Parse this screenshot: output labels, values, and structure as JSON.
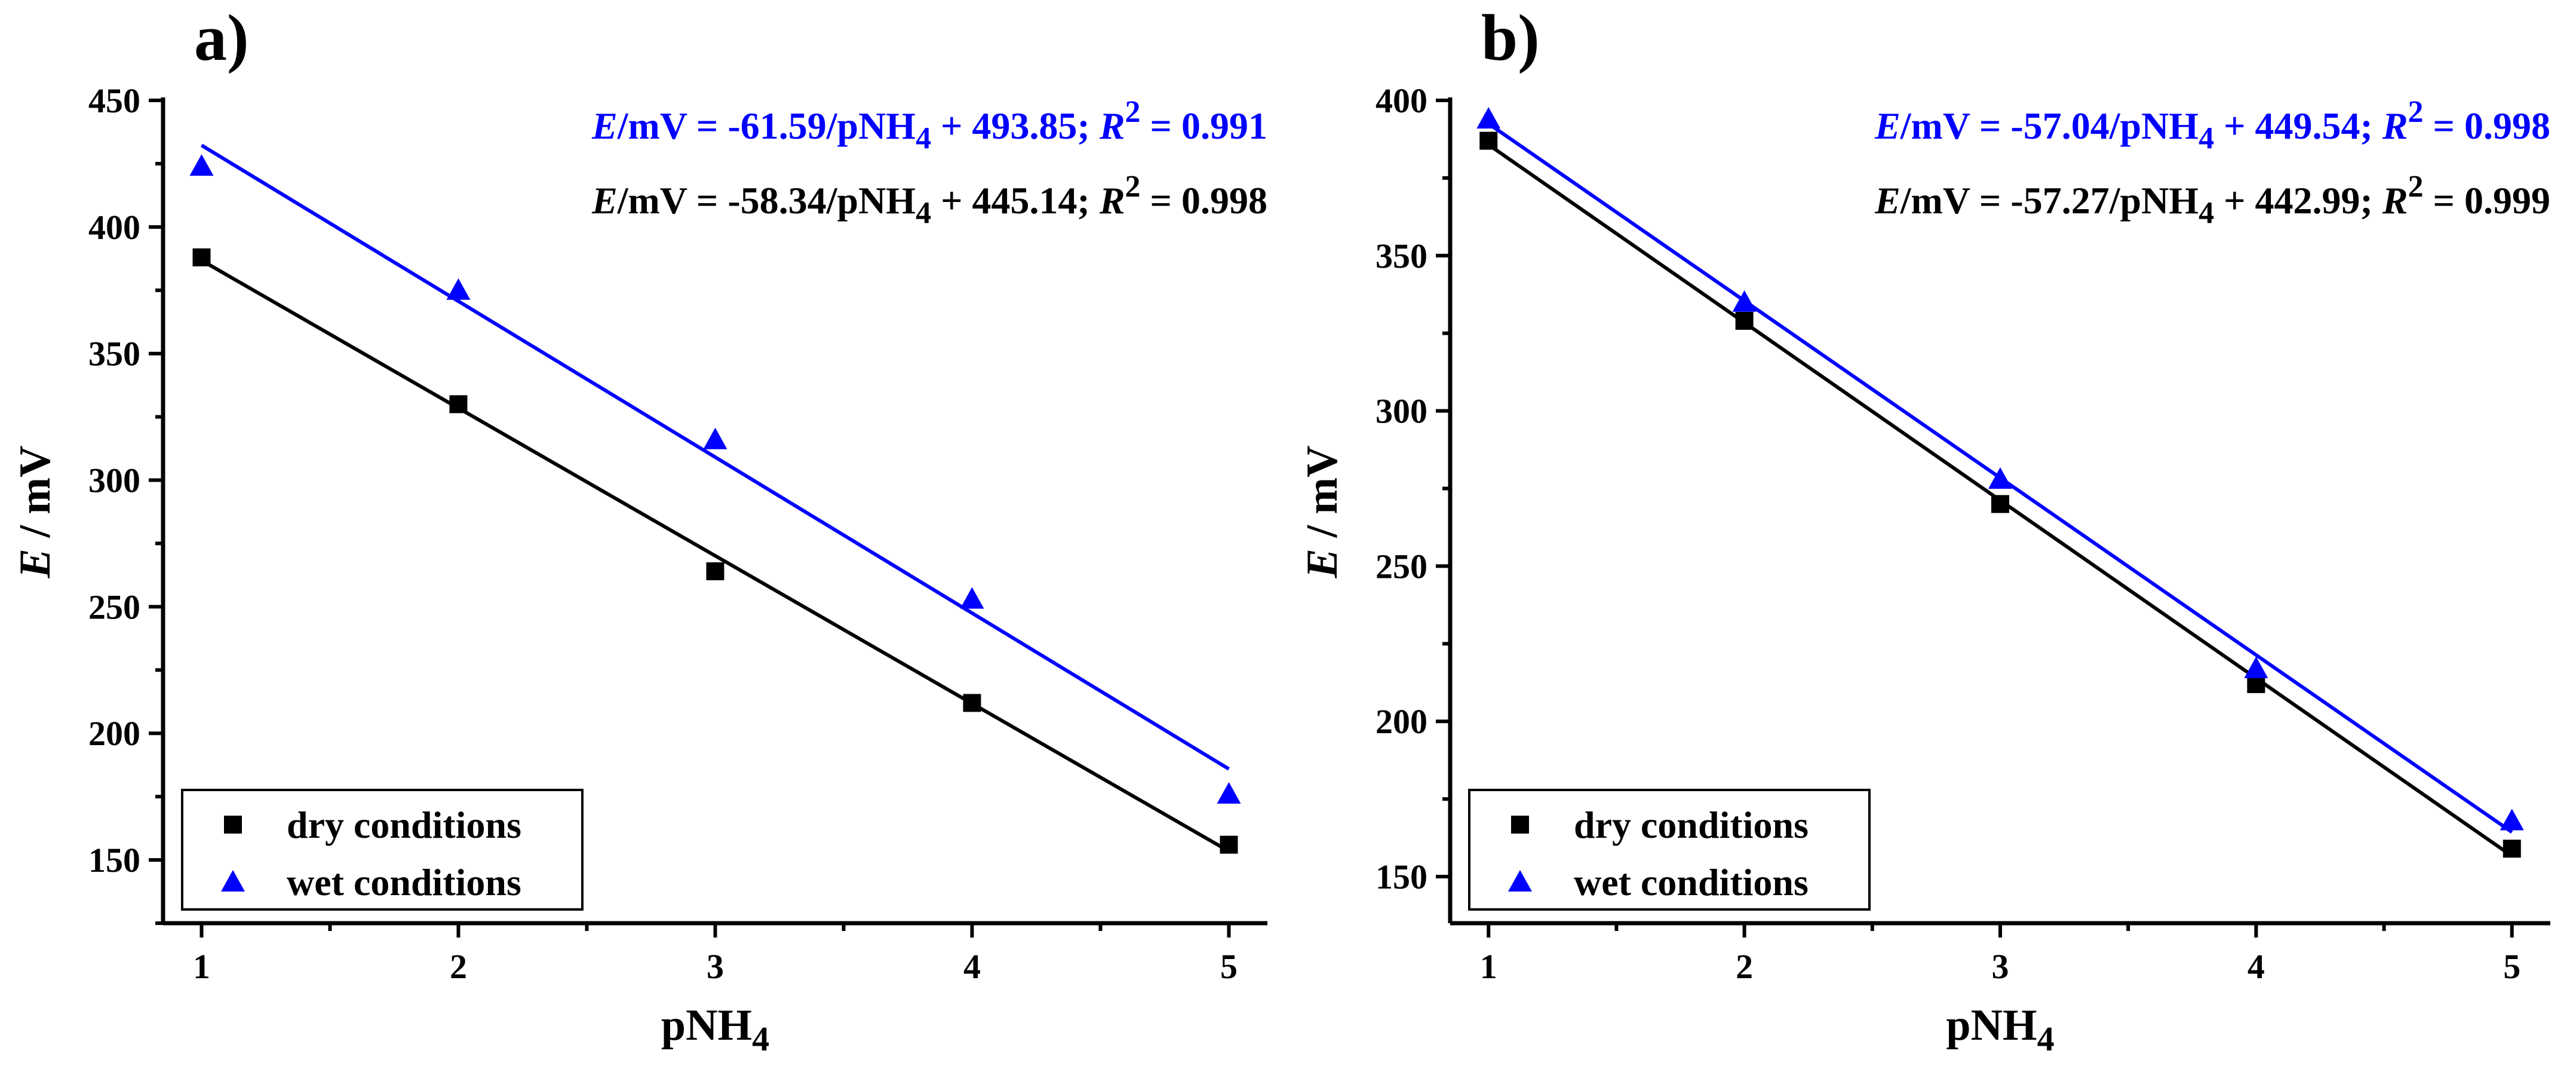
{
  "chart_data": [
    {
      "type": "scatter",
      "panel_label": "a)",
      "xlabel": "pNH",
      "xlabel_sub": "4",
      "ylabel_var": "E",
      "ylabel_unit": " / mV",
      "xlim": [
        0.85,
        5.15
      ],
      "ylim": [
        125,
        450
      ],
      "xticks": [
        1,
        2,
        3,
        4,
        5
      ],
      "yticks": [
        150,
        200,
        250,
        300,
        350,
        400,
        450
      ],
      "legend_position": "bottom-left",
      "series": [
        {
          "name": "dry conditions",
          "marker": "square",
          "color": "#000000",
          "x": [
            1,
            2,
            3,
            4,
            5
          ],
          "y": [
            388,
            330,
            264,
            212,
            156
          ],
          "fit": {
            "slope": -58.34,
            "intercept": 445.14,
            "r2": 0.998
          }
        },
        {
          "name": "wet conditions",
          "marker": "triangle",
          "color": "#0000ff",
          "x": [
            1,
            2,
            3,
            4,
            5
          ],
          "y": [
            424,
            375,
            316,
            253,
            176
          ],
          "fit": {
            "slope": -61.59,
            "intercept": 493.85,
            "r2": 0.991
          }
        }
      ],
      "annotations": [
        {
          "color": "#0000ff",
          "var": "E",
          "pre": "/mV = -61.59/pNH",
          "sub": "4",
          "mid": " + 493.85; ",
          "r": "R",
          "sup": "2",
          "post": " = 0.991"
        },
        {
          "color": "#000000",
          "var": "E",
          "pre": "/mV = -58.34/pNH",
          "sub": "4",
          "mid": " + 445.14; ",
          "r": "R",
          "sup": "2",
          "post": " = 0.998"
        }
      ]
    },
    {
      "type": "scatter",
      "panel_label": "b)",
      "xlabel": "pNH",
      "xlabel_sub": "4",
      "ylabel_var": "E",
      "ylabel_unit": " / mV",
      "xlim": [
        0.85,
        5.15
      ],
      "ylim": [
        135,
        400
      ],
      "xticks": [
        1,
        2,
        3,
        4,
        5
      ],
      "yticks": [
        150,
        200,
        250,
        300,
        350,
        400
      ],
      "legend_position": "bottom-left",
      "series": [
        {
          "name": "dry conditions",
          "marker": "square",
          "color": "#000000",
          "x": [
            1,
            2,
            3,
            4,
            5
          ],
          "y": [
            387,
            329,
            270,
            212,
            159
          ],
          "fit": {
            "slope": -57.27,
            "intercept": 442.99,
            "r2": 0.999
          }
        },
        {
          "name": "wet conditions",
          "marker": "triangle",
          "color": "#0000ff",
          "x": [
            1,
            2,
            3,
            4,
            5
          ],
          "y": [
            394,
            335,
            278,
            217,
            168
          ],
          "fit": {
            "slope": -57.04,
            "intercept": 449.54,
            "r2": 0.998
          }
        }
      ],
      "annotations": [
        {
          "color": "#0000ff",
          "var": "E",
          "pre": "/mV = -57.04/pNH",
          "sub": "4",
          "mid": " + 449.54; ",
          "r": "R",
          "sup": "2",
          "post": " = 0.998"
        },
        {
          "color": "#000000",
          "var": "E",
          "pre": "/mV = -57.27/pNH",
          "sub": "4",
          "mid": " + 442.99; ",
          "r": "R",
          "sup": "2",
          "post": " = 0.999"
        }
      ]
    }
  ]
}
